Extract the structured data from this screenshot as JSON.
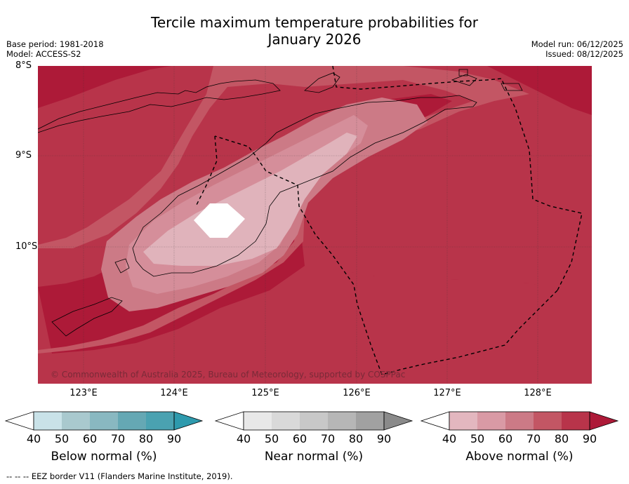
{
  "title": {
    "line1": "Tercile maximum temperature probabilities for",
    "line2": "January 2026"
  },
  "meta": {
    "base_period": "Base period: 1981-2018",
    "model": "Model: ACCESS-S2",
    "model_run": "Model run: 06/12/2025",
    "issued": "Issued: 08/12/2025"
  },
  "axes": {
    "lat_labels": [
      "8°S",
      "9°S",
      "10°S"
    ],
    "lon_labels": [
      "123°E",
      "124°E",
      "125°E",
      "126°E",
      "127°E",
      "128°E"
    ]
  },
  "copyright": "© Commonwealth of Australia 2025, Bureau of Meteorology, supported by COSPPac",
  "colorbars": [
    {
      "label": "Below normal (%)",
      "ticks": [
        "40",
        "50",
        "60",
        "70",
        "80",
        "90"
      ],
      "colors": [
        "#c9e2e8",
        "#a9c9ce",
        "#89b8c1",
        "#65a8b4",
        "#4aa2b1",
        "#2e9aad"
      ]
    },
    {
      "label": "Near normal (%)",
      "ticks": [
        "40",
        "50",
        "60",
        "70",
        "80",
        "90"
      ],
      "colors": [
        "#e8e8e8",
        "#d9d9d9",
        "#c8c8c8",
        "#b6b6b6",
        "#a1a1a1",
        "#8a8a8a"
      ]
    },
    {
      "label": "Above normal (%)",
      "ticks": [
        "40",
        "50",
        "60",
        "70",
        "80",
        "90"
      ],
      "colors": [
        "#e3b7bf",
        "#d99aa5",
        "#cc7a86",
        "#c35664",
        "#b8344a",
        "#ad1a38"
      ]
    }
  ],
  "footer": "--  --  -- EEZ border V11 (Flanders Marine Institute, 2019).",
  "map_colors": {
    "p90": "#ad1a38",
    "p80": "#b8344a",
    "p70": "#c35664",
    "p60": "#cc7a86",
    "p50": "#d58e9a",
    "p40": "#e0b3bb",
    "white": "#ffffff"
  }
}
